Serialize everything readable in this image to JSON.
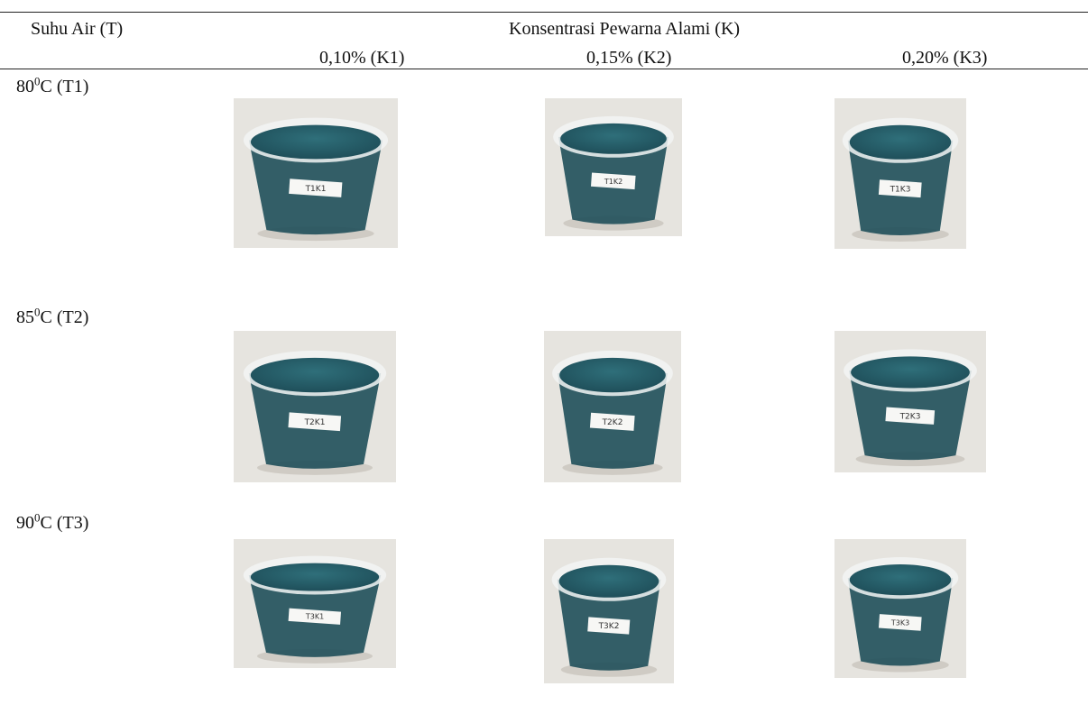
{
  "table": {
    "header": {
      "row_header": "Suhu Air (T)",
      "group_header": "Konsentrasi Pewarna Alami (K)",
      "columns": [
        "0,10% (K1)",
        "0,15% (K2)",
        "0,20% (K3)"
      ]
    },
    "rows": [
      {
        "temp": "80",
        "sup": "0",
        "unit": "C (T1)",
        "labels": [
          "T1K1",
          "T1K2",
          "T1K3"
        ]
      },
      {
        "temp": "85",
        "sup": "0",
        "unit": "C (T2)",
        "labels": [
          "T2K1",
          "T2K2",
          "T2K3"
        ]
      },
      {
        "temp": "90",
        "sup": "0",
        "unit": "C (T3)",
        "labels": [
          "T3K1",
          "T3K2",
          "T3K3"
        ]
      }
    ]
  },
  "colors": {
    "jelly": "#2f6f7a",
    "jelly_dark": "#1f4f5a",
    "cup_rim": "#f2f4f4",
    "background": "#e6e4df"
  }
}
